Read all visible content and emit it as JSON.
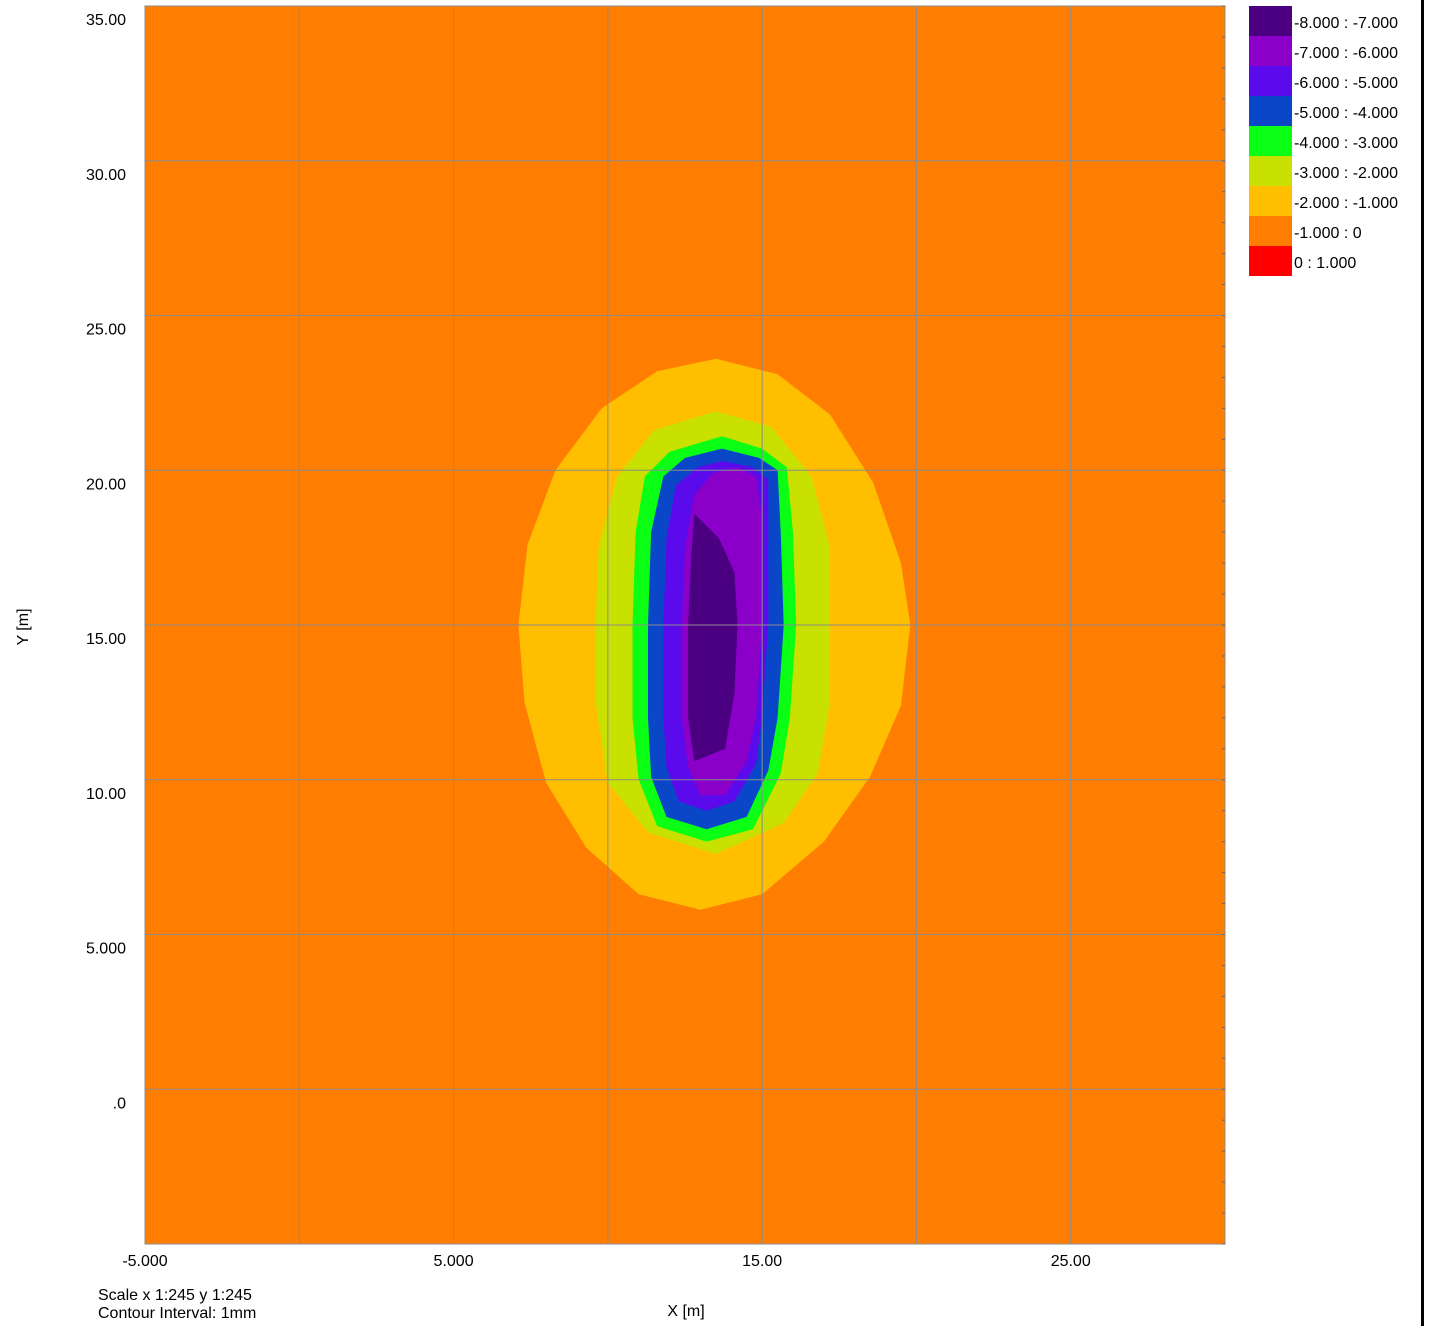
{
  "chart_data": {
    "type": "heatmap",
    "title": "",
    "xlabel": "X [m]",
    "ylabel": "Y [m]",
    "xlim": [
      -5,
      30
    ],
    "ylim": [
      -5,
      35
    ],
    "grid": true,
    "x_ticks": [
      {
        "value": -5,
        "label": "-5.000"
      },
      {
        "value": 5,
        "label": "5.000"
      },
      {
        "value": 15,
        "label": "15.00"
      },
      {
        "value": 25,
        "label": "25.00"
      }
    ],
    "x_grid": [
      -5,
      0,
      5,
      10,
      15,
      20,
      25
    ],
    "y_ticks": [
      {
        "value": 35,
        "label": "35.00"
      },
      {
        "value": 30,
        "label": "30.00"
      },
      {
        "value": 25,
        "label": "25.00"
      },
      {
        "value": 20,
        "label": "20.00"
      },
      {
        "value": 15,
        "label": "15.00"
      },
      {
        "value": 10,
        "label": "10.00"
      },
      {
        "value": 5,
        "label": "5.000"
      },
      {
        "value": 0,
        "label": ".0"
      }
    ],
    "y_grid": [
      0,
      5,
      10,
      15,
      20,
      25,
      30
    ],
    "background_band": "-1.000 : 0",
    "legend": [
      {
        "label": "-8.000 : -7.000",
        "color": "#4b0082"
      },
      {
        "label": "-7.000 : -6.000",
        "color": "#8a00c8"
      },
      {
        "label": "-6.000 : -5.000",
        "color": "#5a0aeb"
      },
      {
        "label": "-5.000 : -4.000",
        "color": "#0a46c8"
      },
      {
        "label": "-4.000 : -3.000",
        "color": "#0aff14"
      },
      {
        "label": "-3.000 : -2.000",
        "color": "#c8e100"
      },
      {
        "label": "-2.000 : -1.000",
        "color": "#ffbe00"
      },
      {
        "label": "-1.000 : 0",
        "color": "#ff7d00"
      },
      {
        "label": "0 : 1.000",
        "color": "#ff0000"
      }
    ],
    "contours": [
      {
        "band": "-2.000 : -1.000",
        "color": "#ffbe00",
        "points": [
          [
            13.5,
            23.6
          ],
          [
            15.5,
            23.1
          ],
          [
            17.2,
            21.8
          ],
          [
            18.6,
            19.6
          ],
          [
            19.5,
            17.0
          ],
          [
            19.8,
            15.0
          ],
          [
            19.5,
            12.4
          ],
          [
            18.5,
            10.1
          ],
          [
            17.0,
            8.0
          ],
          [
            15.0,
            6.3
          ],
          [
            13.0,
            5.8
          ],
          [
            11.0,
            6.3
          ],
          [
            9.3,
            7.8
          ],
          [
            8.0,
            9.9
          ],
          [
            7.3,
            12.5
          ],
          [
            7.1,
            15.0
          ],
          [
            7.4,
            17.6
          ],
          [
            8.3,
            20.0
          ],
          [
            9.8,
            22.0
          ],
          [
            11.6,
            23.2
          ]
        ]
      },
      {
        "band": "-3.000 : -2.000",
        "color": "#c8e100",
        "points": [
          [
            13.5,
            21.9
          ],
          [
            15.3,
            21.4
          ],
          [
            16.6,
            19.8
          ],
          [
            17.2,
            17.5
          ],
          [
            17.2,
            15.0
          ],
          [
            17.2,
            12.5
          ],
          [
            16.8,
            10.2
          ],
          [
            15.7,
            8.6
          ],
          [
            13.5,
            7.6
          ],
          [
            11.3,
            8.3
          ],
          [
            10.0,
            9.9
          ],
          [
            9.6,
            12.5
          ],
          [
            9.6,
            15.0
          ],
          [
            9.7,
            17.5
          ],
          [
            10.3,
            19.8
          ],
          [
            11.5,
            21.3
          ]
        ]
      },
      {
        "band": "-4.000 : -3.000",
        "color": "#0aff14",
        "points": [
          [
            13.7,
            21.1
          ],
          [
            15.0,
            20.7
          ],
          [
            15.8,
            20.1
          ],
          [
            16.0,
            18.0
          ],
          [
            16.1,
            15.0
          ],
          [
            15.9,
            12.0
          ],
          [
            15.6,
            10.2
          ],
          [
            14.7,
            8.4
          ],
          [
            13.2,
            8.0
          ],
          [
            11.6,
            8.5
          ],
          [
            11.0,
            10.0
          ],
          [
            10.8,
            12.0
          ],
          [
            10.8,
            15.0
          ],
          [
            10.9,
            18.0
          ],
          [
            11.2,
            19.8
          ],
          [
            12.0,
            20.6
          ]
        ]
      },
      {
        "band": "-5.000 : -4.000",
        "color": "#0a46c8",
        "points": [
          [
            13.7,
            20.7
          ],
          [
            14.9,
            20.4
          ],
          [
            15.5,
            20.0
          ],
          [
            15.6,
            18.0
          ],
          [
            15.7,
            15.0
          ],
          [
            15.5,
            12.0
          ],
          [
            15.2,
            10.3
          ],
          [
            14.5,
            8.8
          ],
          [
            13.2,
            8.4
          ],
          [
            11.9,
            8.8
          ],
          [
            11.4,
            10.1
          ],
          [
            11.3,
            12.0
          ],
          [
            11.3,
            15.0
          ],
          [
            11.4,
            18.0
          ],
          [
            11.8,
            19.8
          ],
          [
            12.5,
            20.4
          ]
        ]
      },
      {
        "band": "-6.000 : -5.000",
        "color": "#5a0aeb",
        "points": [
          [
            13.7,
            20.3
          ],
          [
            14.7,
            20.1
          ],
          [
            15.2,
            19.7
          ],
          [
            15.2,
            18.0
          ],
          [
            15.2,
            15.0
          ],
          [
            15.0,
            12.0
          ],
          [
            14.8,
            10.5
          ],
          [
            14.1,
            9.3
          ],
          [
            13.2,
            9.0
          ],
          [
            12.3,
            9.3
          ],
          [
            11.9,
            10.4
          ],
          [
            11.8,
            12.0
          ],
          [
            11.8,
            15.0
          ],
          [
            11.9,
            17.8
          ],
          [
            12.2,
            19.5
          ],
          [
            12.9,
            20.1
          ]
        ]
      },
      {
        "band": "-7.000 : -6.000",
        "color": "#8a00c8",
        "points": [
          [
            14.2,
            20.1
          ],
          [
            14.8,
            19.8
          ],
          [
            15.0,
            18.5
          ],
          [
            15.0,
            15.0
          ],
          [
            14.8,
            12.0
          ],
          [
            14.5,
            10.6
          ],
          [
            13.8,
            9.5
          ],
          [
            13.0,
            9.5
          ],
          [
            12.6,
            10.4
          ],
          [
            12.4,
            12.0
          ],
          [
            12.4,
            15.0
          ],
          [
            12.5,
            17.5
          ],
          [
            12.8,
            19.2
          ],
          [
            13.4,
            19.9
          ]
        ]
      },
      {
        "band": "-8.000 : -7.000",
        "color": "#4b0082",
        "points": [
          [
            12.8,
            18.6
          ],
          [
            13.6,
            17.8
          ],
          [
            14.1,
            16.7
          ],
          [
            14.2,
            15.0
          ],
          [
            14.1,
            12.8
          ],
          [
            13.8,
            11.0
          ],
          [
            12.8,
            10.6
          ],
          [
            12.6,
            12.0
          ],
          [
            12.6,
            15.0
          ],
          [
            12.7,
            17.2
          ]
        ]
      }
    ]
  },
  "footer": {
    "scale": "Scale x 1:245  y 1:245",
    "contour_interval": "Contour Interval:  1mm"
  },
  "colors": {
    "grid": "#8c8c8c",
    "frame": "#000000"
  }
}
